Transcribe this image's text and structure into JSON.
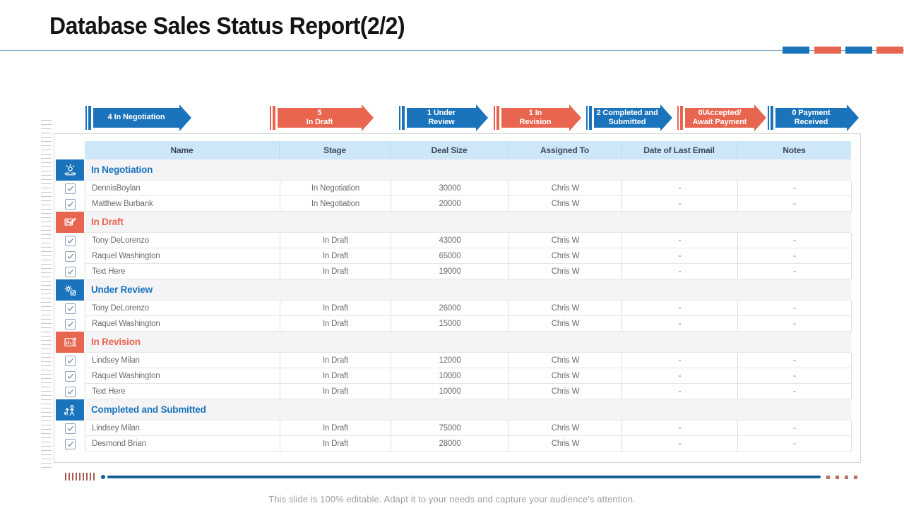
{
  "slide": {
    "title": "Database Sales Status Report(2/2)",
    "footer_note": "This slide is 100% editable. Adapt it to your needs and capture your audience's attention."
  },
  "theme": {
    "blue": "#1B74BB",
    "orange": "#E8664F",
    "header_fill": "#CDE6F8",
    "section_fill": "#F4F4F7"
  },
  "header_accent_bars": [
    "#1B74BB",
    "#E8664F",
    "#1B74BB",
    "#E8664F"
  ],
  "pipeline_stages": [
    {
      "label": "4 In Negotiation",
      "color": "#1B74BB"
    },
    {
      "label": "5\nIn Draft",
      "color": "#E8664F"
    },
    {
      "label": "1 Under\nReview",
      "color": "#1B74BB"
    },
    {
      "label": "1 In\nRevision",
      "color": "#E8664F"
    },
    {
      "label": "2 Completed and\nSubmitted",
      "color": "#1B74BB"
    },
    {
      "label": "0\\Accepted/\nAwait Payment",
      "color": "#E8664F"
    },
    {
      "label": "0 Payment\nReceived",
      "color": "#1B74BB"
    }
  ],
  "table": {
    "columns": [
      "Name",
      "Stage",
      "Deal Size",
      "Assigned To",
      "Date of Last Email",
      "Notes"
    ],
    "sections": [
      {
        "title": "In Negotiation",
        "color": "#1B74BB",
        "icon": "negotiation-hands-icon",
        "rows": [
          [
            "DennisBoylan",
            "In Negotiation",
            "30000",
            "Chris W",
            "-",
            "-"
          ],
          [
            "Matthew Burbank",
            "In Negotiation",
            "20000",
            "Chris W",
            "-",
            "-"
          ]
        ]
      },
      {
        "title": "In Draft",
        "color": "#E8664F",
        "icon": "draft-pen-icon",
        "rows": [
          [
            "Tony DeLorenzo",
            "In Draft",
            "43000",
            "Chris W",
            "-",
            "-"
          ],
          [
            "Raquel Washington",
            "In Draft",
            "65000",
            "Chris W",
            "-",
            "-"
          ],
          [
            "Text Here",
            "In Draft",
            "19000",
            "Chris W",
            "-",
            "-"
          ]
        ]
      },
      {
        "title": "Under Review",
        "color": "#1B74BB",
        "icon": "review-gear-icon",
        "rows": [
          [
            "Tony DeLorenzo",
            "In Draft",
            "26000",
            "Chris W",
            "-",
            "-"
          ],
          [
            "Raquel Washington",
            "In Draft",
            "15000",
            "Chris W",
            "-",
            "-"
          ]
        ]
      },
      {
        "title": "In Revision",
        "color": "#E8664F",
        "icon": "revision-board-icon",
        "rows": [
          [
            "Lindsey Milan",
            "In Draft",
            "12000",
            "Chris W",
            "-",
            "-"
          ],
          [
            "Raquel Washington",
            "In Draft",
            "10000",
            "Chris W",
            "-",
            "-"
          ],
          [
            "Text Here",
            "In Draft",
            "10000",
            "Chris W",
            "-",
            "-"
          ]
        ]
      },
      {
        "title": "Completed and Submitted",
        "color": "#1B74BB",
        "icon": "completed-person-icon",
        "rows": [
          [
            "Lindsey Milan",
            "In Draft",
            "75000",
            "Chris W",
            "-",
            "-"
          ],
          [
            "Desmond Brian",
            "In Draft",
            "28000",
            "Chris W",
            "-",
            "-"
          ]
        ]
      }
    ]
  }
}
